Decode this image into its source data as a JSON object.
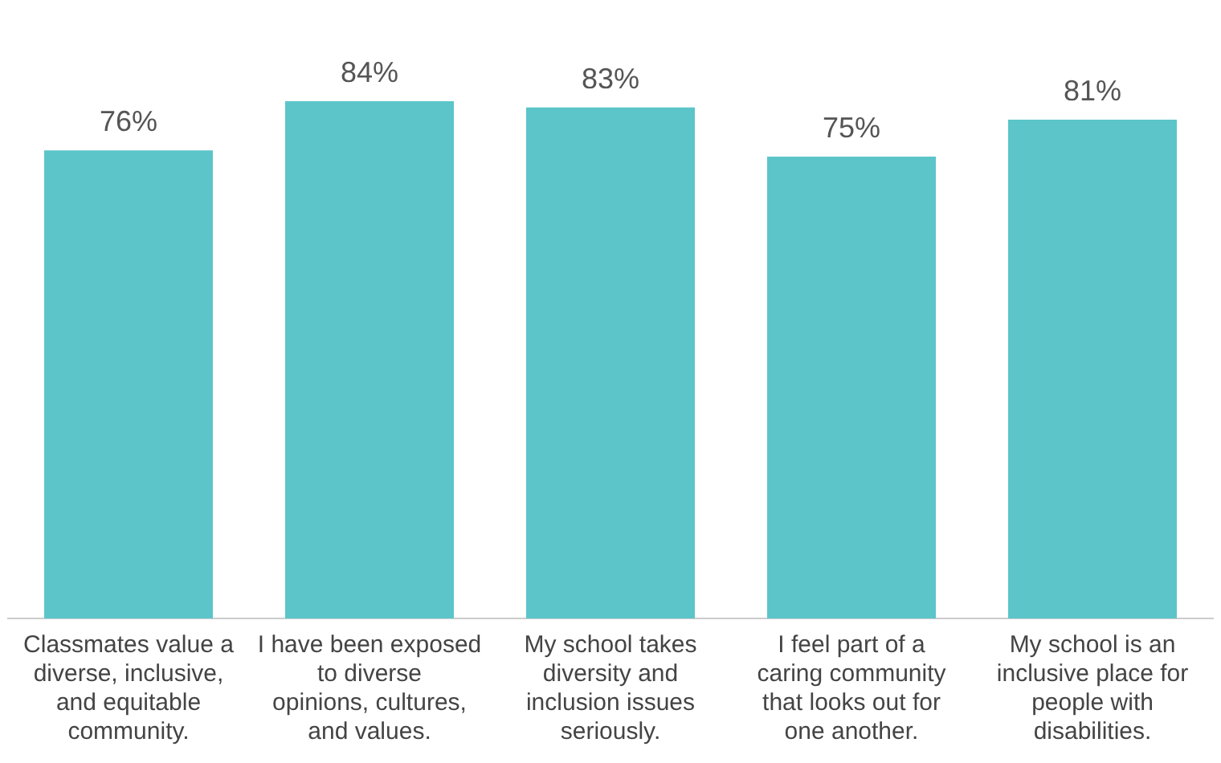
{
  "chart_data": {
    "type": "bar",
    "categories": [
      "Classmates value a diverse, inclusive, and equitable community.",
      "I have been exposed to diverse opinions, cultures, and values.",
      "My school takes diversity and inclusion issues seriously.",
      "I feel part of a caring community that looks out for one another.",
      "My school is an inclusive place for people with disabilities."
    ],
    "values": [
      76,
      84,
      83,
      75,
      81
    ],
    "value_labels": [
      "76%",
      "84%",
      "83%",
      "75%",
      "81%"
    ],
    "color": "#5bc5c9",
    "grid": false,
    "legend": false
  }
}
